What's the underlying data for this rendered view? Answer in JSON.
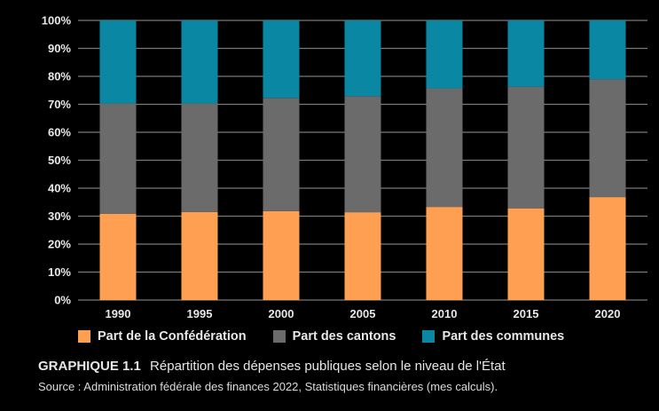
{
  "chart_data": {
    "type": "bar",
    "stacked": true,
    "percent": true,
    "categories": [
      "1990",
      "1995",
      "2000",
      "2005",
      "2010",
      "2015",
      "2020"
    ],
    "series": [
      {
        "name": "Part de la Confédération",
        "color": "#fe9f52",
        "values": [
          30.8,
          31.5,
          31.8,
          31.4,
          33.3,
          32.8,
          36.8
        ]
      },
      {
        "name": "Part des cantons",
        "color": "#6b6b6b",
        "values": [
          39.5,
          38.8,
          40.5,
          41.5,
          42.4,
          43.5,
          42.2
        ]
      },
      {
        "name": "Part des communes",
        "color": "#0a87a2",
        "values": [
          29.7,
          29.7,
          27.7,
          27.1,
          24.3,
          23.7,
          21.0
        ]
      }
    ],
    "ylim": [
      0,
      100
    ],
    "yticks": [
      "0%",
      "10%",
      "20%",
      "30%",
      "40%",
      "50%",
      "60%",
      "70%",
      "80%",
      "90%",
      "100%"
    ],
    "grid": true,
    "legend_position": "bottom",
    "title": "Répartition des dépenses publiques selon le niveau de l'État",
    "xlabel": "",
    "ylabel": ""
  },
  "caption": {
    "label": "GRAPHIQUE 1.1",
    "text": "Répartition des dépenses publiques selon le niveau de l'État",
    "source": "Source : Administration fédérale des finances 2022, Statistiques financières (mes calculs)."
  }
}
